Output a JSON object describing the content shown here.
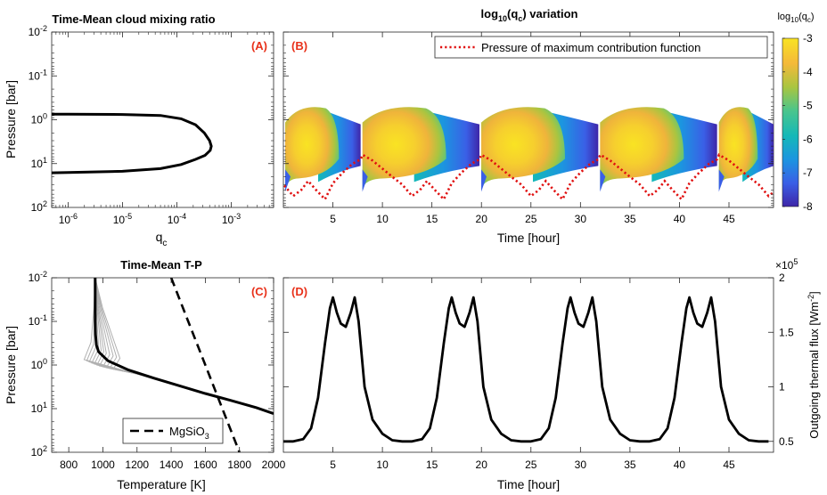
{
  "colors": {
    "panel_label": "#e8311a",
    "line": "#000000",
    "dotted": "#e01010",
    "thin_profiles": "#b0b0b0",
    "colormap": [
      "#3e26a8",
      "#3a5fe6",
      "#1c95e0",
      "#15b8b8",
      "#4ac58c",
      "#a9c540",
      "#f4b93a",
      "#f9e323"
    ]
  },
  "chart_data": [
    {
      "panel": "(A)",
      "type": "line",
      "title": "Time-Mean cloud mixing ratio",
      "xlabel": "q",
      "xlabel_sub": "c",
      "ylabel": "Pressure [bar]",
      "xscale": "log",
      "yscale": "log",
      "y_reversed": true,
      "xlim": [
        5e-07,
        0.006
      ],
      "ylim": [
        0.01,
        100
      ],
      "xtick_labels": [
        {
          "base": "10",
          "exp": "-6"
        },
        {
          "base": "10",
          "exp": "-5"
        },
        {
          "base": "10",
          "exp": "-4"
        },
        {
          "base": "10",
          "exp": "-3"
        }
      ],
      "ytick_labels": [
        {
          "base": "10",
          "exp": "-2"
        },
        {
          "base": "10",
          "exp": "-1"
        },
        {
          "base": "10",
          "exp": "0"
        },
        {
          "base": "10",
          "exp": "1"
        },
        {
          "base": "10",
          "exp": "2"
        }
      ],
      "curve": {
        "x": [
          5e-07,
          1e-06,
          1e-05,
          5e-05,
          0.00012,
          0.00022,
          0.00032,
          0.0004,
          0.00043,
          0.00041,
          0.00033,
          0.00022,
          0.00012,
          5e-05,
          1e-05,
          1e-06,
          5e-07
        ],
        "y": [
          0.75,
          0.75,
          0.76,
          0.8,
          0.95,
          1.3,
          2.0,
          3.0,
          4.0,
          5.0,
          6.5,
          8.0,
          10.5,
          13.0,
          15.0,
          16.0,
          16.2
        ]
      }
    },
    {
      "panel": "(B)",
      "type": "heatmap",
      "title": "log₁₀(qᴄ) variation",
      "title_parts": {
        "pre": "log",
        "sub1": "10",
        "mid": "(q",
        "sub2": "c",
        "post": ") variation"
      },
      "xlabel": "Time [hour]",
      "xlim": [
        0,
        49.5
      ],
      "xticks": [
        5,
        10,
        15,
        20,
        25,
        30,
        35,
        40,
        45
      ],
      "legend": {
        "label": "Pressure of maximum contribution function",
        "placement": "top-right"
      },
      "colorbar": {
        "label_parts": {
          "pre": "log",
          "sub1": "10",
          "mid": "(q",
          "sub2": "c",
          "post": ")"
        },
        "ticks": [
          -3,
          -4,
          -5,
          -6,
          -7,
          -8
        ],
        "range": [
          -8,
          -3
        ]
      },
      "cloud_bands": [
        {
          "start": 0.0,
          "end": 7.8
        },
        {
          "start": 7.8,
          "end": 19.8
        },
        {
          "start": 19.8,
          "end": 31.8
        },
        {
          "start": 31.8,
          "end": 43.8
        },
        {
          "start": 43.8,
          "end": 49.5
        }
      ],
      "period_hours": 12,
      "max_contribution_pressure": {
        "pattern_t": [
          0,
          1,
          2,
          3,
          4,
          5,
          5.8,
          6.5,
          7.3,
          8.2,
          9,
          10,
          11,
          11.8
        ],
        "pattern_p": [
          6.3,
          8.5,
          13,
          20,
          30,
          55,
          40,
          25,
          40,
          65,
          28,
          16,
          10,
          8
        ],
        "offset_hours": 8
      }
    },
    {
      "panel": "(C)",
      "type": "line",
      "title": "Time-Mean T-P",
      "xlabel": "Temperature [K]",
      "ylabel": "Pressure [bar]",
      "yscale": "log",
      "y_reversed": true,
      "xlim": [
        700,
        2000
      ],
      "ylim": [
        0.01,
        100
      ],
      "xticks": [
        800,
        1000,
        1200,
        1400,
        1600,
        1800,
        2000
      ],
      "ytick_labels": [
        {
          "base": "10",
          "exp": "-2"
        },
        {
          "base": "10",
          "exp": "-1"
        },
        {
          "base": "10",
          "exp": "0"
        },
        {
          "base": "10",
          "exp": "1"
        },
        {
          "base": "10",
          "exp": "2"
        }
      ],
      "legend": {
        "label_pre": "MgSiO",
        "label_sub": "3",
        "placement": "bottom-center"
      },
      "mean_profile": {
        "T": [
          955,
          955,
          955,
          957,
          962,
          975,
          1030,
          1150,
          1300,
          1450,
          1600,
          1750,
          1900,
          2000
        ],
        "P": [
          0.01,
          0.03,
          0.1,
          0.2,
          0.35,
          0.5,
          0.8,
          1.3,
          2.0,
          3.0,
          4.5,
          6.5,
          9.5,
          13.0
        ]
      },
      "condensation_curve": {
        "T": [
          1400,
          1500,
          1600,
          1700,
          1800
        ],
        "P": [
          0.01,
          0.1,
          1.0,
          10.0,
          100.0
        ]
      },
      "spread_profiles": {
        "T_tops": [
          930,
          945,
          960,
          975,
          990,
          1005,
          1020,
          1040,
          1060,
          1080,
          1100
        ],
        "P_start": 0.75
      }
    },
    {
      "panel": "(D)",
      "type": "line",
      "xlabel": "Time [hour]",
      "ylabel": "Outgoing thermal flux [Wm⁻²]",
      "ylabel_parts": {
        "pre": "Outgoing thermal flux [Wm",
        "sup": "-2",
        "post": "]"
      },
      "xlim": [
        0,
        49.5
      ],
      "ylim": [
        0.4,
        2.0
      ],
      "y_multiplier": {
        "base": "×10",
        "exp": "5"
      },
      "xticks": [
        5,
        10,
        15,
        20,
        25,
        30,
        35,
        40,
        45
      ],
      "yticks": [
        0.5,
        1,
        1.5,
        2
      ],
      "ytick_labels": [
        "0.5",
        "1",
        "1.5",
        "2"
      ],
      "period_hours": 12,
      "pattern": {
        "t": [
          0,
          1,
          2,
          2.8,
          3.5,
          4.2,
          4.7,
          5.0,
          5.4,
          5.8,
          6.3,
          6.8,
          7.2,
          7.6,
          8.2,
          9.0,
          10.0,
          11.0,
          12.0
        ],
        "y": [
          0.5,
          0.5,
          0.52,
          0.62,
          0.9,
          1.4,
          1.72,
          1.82,
          1.68,
          1.58,
          1.55,
          1.68,
          1.82,
          1.6,
          1.0,
          0.7,
          0.57,
          0.51,
          0.5
        ]
      }
    }
  ]
}
